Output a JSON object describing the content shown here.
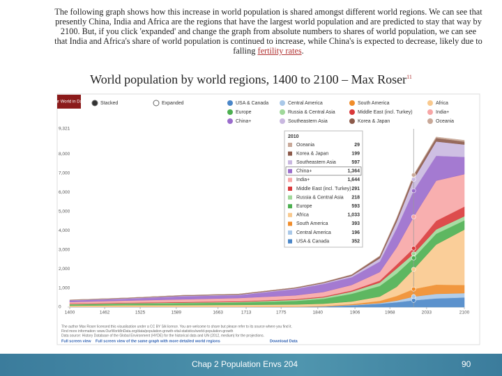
{
  "intro": {
    "text": "The following graph shows how this increase in world population is shared amongst different world regions. We can see that presently China, India and Africa are the regions that have the largest world population and are predicted to stay that way by 2100. But, if you click 'expanded' and change the graph from absolute numbers to shares of world population, we can see that India and Africa's share of world population is continued to increase, while China's is expected to decrease, likely due to falling",
    "link": "fertility rates",
    "end": "."
  },
  "heading": {
    "title": "World population by world regions, 1400 to 2100 – Max Roser",
    "note": "11"
  },
  "chart_data": {
    "type": "area",
    "stacked": true,
    "logo": "Our World in Data",
    "modes": [
      "Stacked",
      "Expanded"
    ],
    "selected_mode": "Stacked",
    "x": [
      1400,
      1500,
      1600,
      1700,
      1800,
      1850,
      1900,
      1950,
      1980,
      2010,
      2050,
      2100
    ],
    "xlim": [
      1400,
      2100
    ],
    "xticks": [
      1400,
      1462,
      1525,
      1589,
      1663,
      1713,
      1775,
      1840,
      1906,
      1968,
      2033,
      2100
    ],
    "ylim": [
      0,
      9321
    ],
    "yticks": [
      0,
      {
        "value": 1000,
        "label": "1,000"
      },
      {
        "value": 2000,
        "label": "2,000"
      },
      {
        "value": 3000,
        "label": "3,000"
      },
      {
        "value": 4000,
        "label": "4,000"
      },
      {
        "value": 5000,
        "label": "5,000"
      },
      {
        "value": 6000,
        "label": "6,000"
      },
      {
        "value": 7000,
        "label": "7,000"
      },
      {
        "value": 8000,
        "label": "8,000"
      },
      {
        "value": 9321,
        "label": "9,321"
      }
    ],
    "grid": false,
    "tooltip_x": 2010,
    "tooltip_index": 9,
    "series": [
      {
        "name": "USA & Canada",
        "color": "#4a86c8",
        "values": [
          1,
          2,
          2,
          2,
          7,
          26,
          90,
          172,
          250,
          352,
          450,
          500
        ],
        "value_labels": [
          null,
          null,
          null,
          null,
          null,
          null,
          null,
          null,
          null,
          "352",
          null,
          null
        ]
      },
      {
        "name": "Central America",
        "color": "#a9c8e8",
        "values": [
          5,
          6,
          4,
          5,
          8,
          12,
          20,
          38,
          90,
          196,
          240,
          230
        ],
        "value_labels": [
          null,
          null,
          null,
          null,
          null,
          null,
          null,
          null,
          null,
          "196",
          null,
          null
        ]
      },
      {
        "name": "South America",
        "color": "#f08c2a",
        "values": [
          8,
          10,
          8,
          8,
          12,
          20,
          40,
          112,
          240,
          393,
          480,
          420
        ],
        "value_labels": [
          null,
          null,
          null,
          null,
          null,
          null,
          null,
          null,
          null,
          "393",
          null,
          null
        ]
      },
      {
        "name": "Africa",
        "color": "#f9c98e",
        "values": [
          60,
          80,
          90,
          100,
          110,
          120,
          140,
          230,
          480,
          1033,
          2100,
          2900
        ],
        "value_labels": [
          null,
          null,
          null,
          null,
          null,
          null,
          null,
          null,
          null,
          "1,033",
          null,
          null
        ]
      },
      {
        "name": "Europe",
        "color": "#4caf50",
        "values": [
          60,
          80,
          100,
          120,
          180,
          250,
          400,
          550,
          690,
          593,
          560,
          480
        ],
        "value_labels": [
          null,
          null,
          null,
          null,
          null,
          null,
          null,
          null,
          null,
          "593",
          null,
          null
        ]
      },
      {
        "name": "Russia & Central Asia",
        "color": "#a0d89a",
        "values": [
          20,
          25,
          30,
          35,
          60,
          80,
          120,
          180,
          270,
          218,
          230,
          220
        ],
        "value_labels": [
          null,
          null,
          null,
          null,
          null,
          null,
          null,
          null,
          null,
          "218",
          null,
          null
        ]
      },
      {
        "name": "Middle East (incl. Turkey)",
        "color": "#d9383a",
        "values": [
          20,
          25,
          30,
          32,
          35,
          40,
          55,
          100,
          200,
          291,
          450,
          500
        ],
        "value_labels": [
          null,
          null,
          null,
          null,
          null,
          null,
          null,
          null,
          null,
          "291",
          null,
          null
        ]
      },
      {
        "name": "India+",
        "color": "#f7a6a6",
        "values": [
          90,
          110,
          140,
          170,
          200,
          240,
          290,
          450,
          900,
          1644,
          2100,
          1700
        ],
        "value_labels": [
          null,
          null,
          null,
          null,
          null,
          null,
          null,
          null,
          null,
          "1,644",
          null,
          null
        ]
      },
      {
        "name": "China+",
        "color": "#9a6ccc",
        "values": [
          80,
          100,
          160,
          150,
          330,
          420,
          400,
          550,
          1000,
          1364,
          1300,
          900
        ],
        "value_labels": [
          null,
          null,
          null,
          null,
          null,
          null,
          null,
          null,
          null,
          "1,364",
          null,
          null
        ]
      },
      {
        "name": "Southeastern Asia",
        "color": "#c9b8e0",
        "values": [
          15,
          20,
          25,
          30,
          40,
          50,
          80,
          170,
          350,
          597,
          750,
          650
        ],
        "value_labels": [
          null,
          null,
          null,
          null,
          null,
          null,
          null,
          null,
          null,
          "597",
          null,
          null
        ]
      },
      {
        "name": "Korea & Japan",
        "color": "#8c5a4a",
        "values": [
          15,
          20,
          25,
          30,
          35,
          40,
          55,
          110,
          170,
          199,
          180,
          150
        ],
        "value_labels": [
          null,
          null,
          null,
          null,
          null,
          null,
          null,
          null,
          null,
          "199",
          null,
          null
        ]
      },
      {
        "name": "Oceania",
        "color": "#c8a898",
        "values": [
          2,
          2,
          2,
          2,
          2,
          2,
          6,
          13,
          23,
          29,
          55,
          70
        ],
        "value_labels": [
          null,
          null,
          null,
          null,
          null,
          null,
          null,
          null,
          null,
          "29",
          null,
          null
        ]
      }
    ],
    "source_lines": [
      "The author Max Roser licensed this visualisation under a CC BY SA licence. You are welcome to share but please refer to its source where you find it.",
      "Find more information: www.OurWorldInData.org/data/population-growth-vital-statistics/world-population-growth",
      "Data source: History Database of the Global Environment (HYDE) for the historical data and UN (2012, medium) for the projections."
    ],
    "links": [
      "Full screen view",
      "Full screen view of the same graph with more detailed world regions",
      "Download Data"
    ]
  },
  "footer": {
    "text": "Chap 2 Population Envs 204",
    "page": "90"
  }
}
